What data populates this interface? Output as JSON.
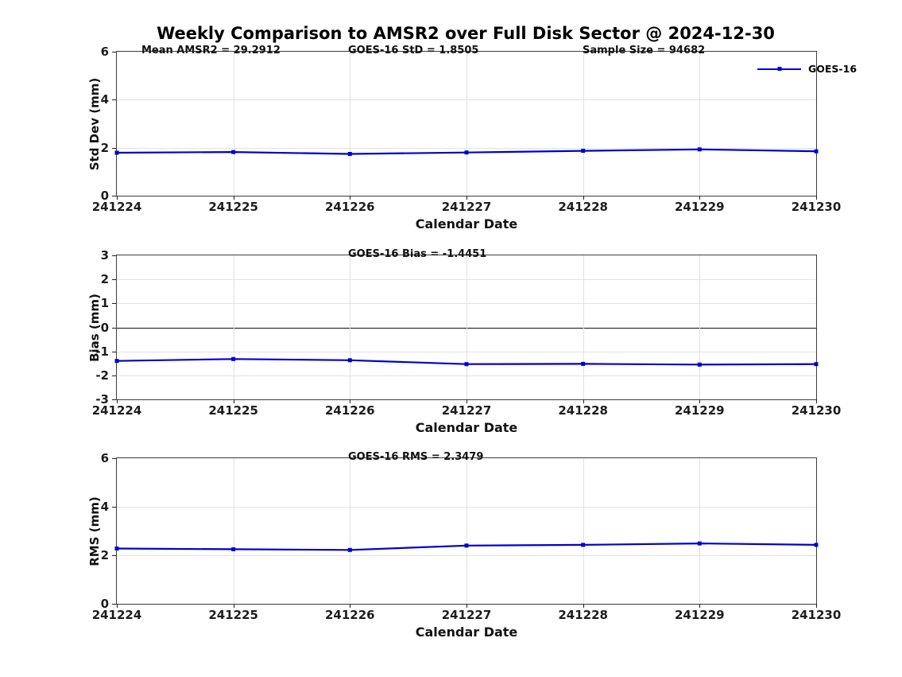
{
  "page_title": "Weekly Comparison to AMSR2 over Full Disk Sector @ 2024-12-30",
  "legend": {
    "label": "GOES-16"
  },
  "colors": {
    "line": "#0000cc",
    "grid": "#e2e2e2",
    "axis": "#3c3c3c"
  },
  "chart_data": [
    {
      "type": "line",
      "ylabel": "Std Dev (mm)",
      "xlabel": "Calendar Date",
      "ylim": [
        0,
        6
      ],
      "yticks": [
        0,
        2,
        4,
        6
      ],
      "grid": true,
      "categories": [
        "241224",
        "241225",
        "241226",
        "241227",
        "241228",
        "241229",
        "241230"
      ],
      "annotations": [
        "Mean AMSR2 = 29.2912",
        "GOES-16 StD = 1.8505",
        "Sample Size = 94682"
      ],
      "legend_position": "northeast-outside",
      "series": [
        {
          "name": "GOES-16",
          "values": [
            1.79,
            1.82,
            1.74,
            1.8,
            1.87,
            1.93,
            1.85
          ]
        }
      ]
    },
    {
      "type": "line",
      "ylabel": "Bias (mm)",
      "xlabel": "Calendar Date",
      "ylim": [
        -3,
        3
      ],
      "yticks": [
        -3,
        -2,
        -1,
        0,
        1,
        2,
        3
      ],
      "grid": true,
      "zero_line": true,
      "categories": [
        "241224",
        "241225",
        "241226",
        "241227",
        "241228",
        "241229",
        "241230"
      ],
      "annotations": [
        "GOES-16 Bias  = -1.4451"
      ],
      "series": [
        {
          "name": "GOES-16",
          "values": [
            -1.4,
            -1.32,
            -1.37,
            -1.53,
            -1.52,
            -1.55,
            -1.53
          ]
        }
      ]
    },
    {
      "type": "line",
      "ylabel": "RMS (mm)",
      "xlabel": "Calendar Date",
      "ylim": [
        0,
        6
      ],
      "yticks": [
        0,
        2,
        4,
        6
      ],
      "grid": true,
      "categories": [
        "241224",
        "241225",
        "241226",
        "241227",
        "241228",
        "241229",
        "241230"
      ],
      "annotations": [
        "GOES-16 RMS = 2.3479"
      ],
      "series": [
        {
          "name": "GOES-16",
          "values": [
            2.28,
            2.25,
            2.22,
            2.4,
            2.43,
            2.49,
            2.43
          ]
        }
      ]
    }
  ]
}
